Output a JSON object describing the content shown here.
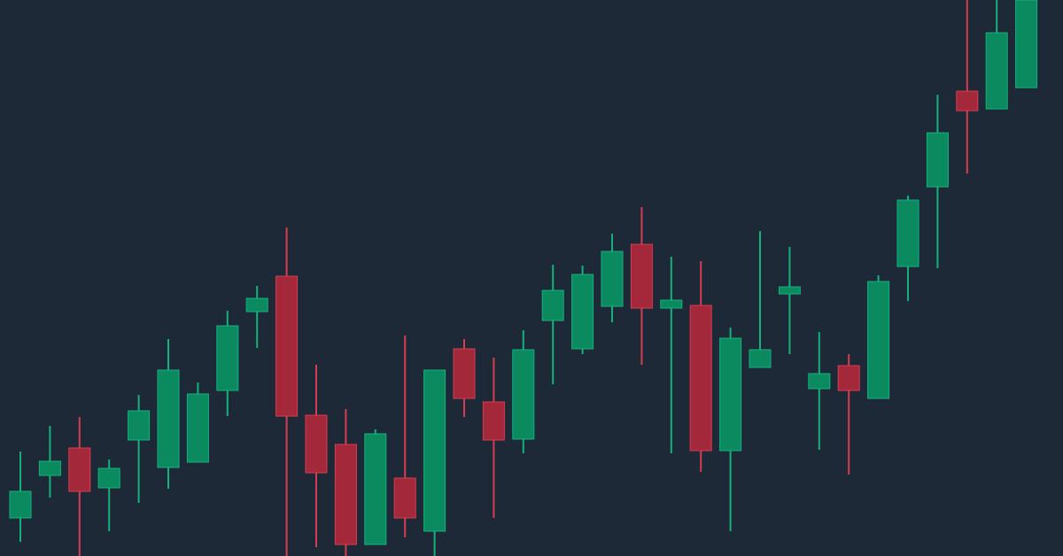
{
  "chart_data": {
    "type": "candlestick",
    "up_color": "#0b8a5f",
    "down_color": "#a3283a",
    "up_edge": "#13b27c",
    "down_edge": "#d83c50",
    "ylim": [
      0,
      628
    ],
    "open": [
      43,
      91,
      122,
      77,
      131,
      100,
      106,
      187,
      276,
      316,
      159,
      126,
      13,
      88,
      28,
      234,
      174,
      132,
      266,
      234,
      282,
      352,
      280,
      283,
      119,
      213,
      296,
      189,
      215,
      178,
      327,
      417,
      525,
      505,
      529
    ],
    "high": [
      118,
      147,
      157,
      109,
      182,
      245,
      196,
      277,
      305,
      371,
      216,
      166,
      143,
      249,
      210,
      245,
      224,
      255,
      329,
      328,
      364,
      394,
      338,
      333,
      258,
      367,
      349,
      253,
      228,
      317,
      407,
      521,
      628,
      628,
      628
    ],
    "low": [
      16,
      66,
      0,
      28,
      60,
      76,
      106,
      158,
      235,
      0,
      10,
      0,
      13,
      21,
      0,
      157,
      43,
      116,
      194,
      228,
      264,
      216,
      116,
      95,
      28,
      213,
      228,
      120,
      92,
      178,
      288,
      325,
      432,
      505,
      529
    ],
    "close": [
      73,
      107,
      73,
      99,
      164,
      210,
      183,
      260,
      291,
      158,
      94,
      13,
      138,
      43,
      210,
      178,
      131,
      233,
      300,
      318,
      344,
      280,
      289,
      119,
      246,
      233,
      304,
      206,
      187,
      310,
      402,
      478,
      503,
      591,
      628
    ]
  }
}
